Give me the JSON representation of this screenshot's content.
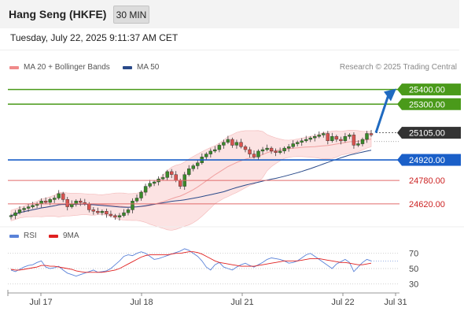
{
  "header": {
    "title": "Hang Seng (HKFE)",
    "timeframe": "30 MIN",
    "timestamp": "Tuesday, July 22, 2025 9:11:37 AM CET"
  },
  "legend": {
    "bb_label": "MA 20 + Bollinger Bands",
    "ma50_label": "MA 50",
    "credit": "Research © 2025 Trading Central"
  },
  "rsi_legend": {
    "rsi_label": "RSI",
    "ma_label": "9MA"
  },
  "colors": {
    "candle": "#3a8a2a",
    "bollinger": "#f0a0a0",
    "ma50": "#2a4a8a",
    "resistance": "#4a9a1a",
    "support": "#e06a6a",
    "pivot": "#1a5fc8",
    "price_tag": "#333333",
    "arrow": "#1f6ac0",
    "rsi": "#5a82d8",
    "rsi_ma": "#e02020"
  },
  "chart_data": [
    {
      "type": "candlestick",
      "x_labels": [
        "Jul 17",
        "Jul 18",
        "Jul 21",
        "Jul 22",
        "Jul 31"
      ],
      "ylim": [
        24480,
        25500
      ],
      "levels": [
        {
          "value": 25400,
          "label": "25400.00",
          "kind": "resistance"
        },
        {
          "value": 25300,
          "label": "25300.00",
          "kind": "resistance"
        },
        {
          "value": 25105,
          "label": "25105.00",
          "kind": "last"
        },
        {
          "value": 24920,
          "label": "24920.00",
          "kind": "pivot"
        },
        {
          "value": 24780,
          "label": "24780.00",
          "kind": "support"
        },
        {
          "value": 24620,
          "label": "24620.00",
          "kind": "support"
        }
      ],
      "last_price": 25105,
      "target": 25390,
      "close": [
        24540,
        24560,
        24580,
        24590,
        24600,
        24610,
        24620,
        24640,
        24630,
        24650,
        24660,
        24690,
        24650,
        24600,
        24620,
        24640,
        24630,
        24620,
        24580,
        24570,
        24560,
        24570,
        24550,
        24540,
        24530,
        24540,
        24560,
        24580,
        24640,
        24660,
        24700,
        24740,
        24760,
        24770,
        24790,
        24800,
        24840,
        24820,
        24780,
        24740,
        24820,
        24860,
        24880,
        24900,
        24940,
        24960,
        24980,
        24990,
        25020,
        25040,
        25060,
        25020,
        25040,
        25010,
        24990,
        24960,
        24940,
        24980,
        24990,
        25000,
        24980,
        24970,
        24980,
        25000,
        25010,
        25030,
        25040,
        25050,
        25060,
        25070,
        25080,
        25090,
        25100,
        25050,
        25080,
        25060,
        25050,
        25080,
        25090,
        25020,
        25030,
        25060,
        25100,
        25090
      ],
      "rsi": {
        "levels": [
          70,
          50,
          30
        ],
        "ylim": [
          20,
          80
        ],
        "rsi": [
          48,
          46,
          49,
          52,
          54,
          55,
          58,
          60,
          52,
          50,
          51,
          53,
          48,
          44,
          42,
          40,
          42,
          44,
          46,
          48,
          45,
          46,
          47,
          50,
          55,
          60,
          66,
          68,
          67,
          70,
          72,
          70,
          66,
          62,
          63,
          65,
          67,
          69,
          71,
          73,
          76,
          74,
          70,
          66,
          60,
          52,
          48,
          55,
          58,
          52,
          50,
          48,
          52,
          55,
          57,
          54,
          52,
          55,
          58,
          62,
          64,
          63,
          62,
          60,
          57,
          58,
          60,
          64,
          68,
          70,
          66,
          62,
          58,
          54,
          50,
          56,
          59,
          62,
          58,
          46,
          52,
          58,
          62,
          60
        ],
        "ma": [
          49,
          48,
          48,
          49,
          50,
          51,
          52,
          54,
          54,
          53,
          53,
          52,
          51,
          50,
          49,
          47,
          46,
          45,
          45,
          45,
          45,
          45,
          46,
          47,
          48,
          50,
          53,
          56,
          59,
          62,
          65,
          67,
          68,
          68,
          68,
          68,
          68,
          69,
          70,
          70,
          71,
          72,
          72,
          71,
          69,
          66,
          63,
          60,
          58,
          57,
          56,
          55,
          54,
          53,
          53,
          53,
          53,
          54,
          55,
          56,
          57,
          58,
          59,
          60,
          60,
          60,
          60,
          61,
          62,
          63,
          63,
          63,
          62,
          61,
          60,
          59,
          58,
          58,
          57,
          56,
          55,
          55,
          56,
          57
        ]
      },
      "x_axis_labels": [
        "Jul 17",
        "Jul 18",
        "Jul 21",
        "Jul 22",
        "Jul 31"
      ],
      "rsi_axis_labels": [
        "70",
        "50",
        "30"
      ]
    }
  ]
}
